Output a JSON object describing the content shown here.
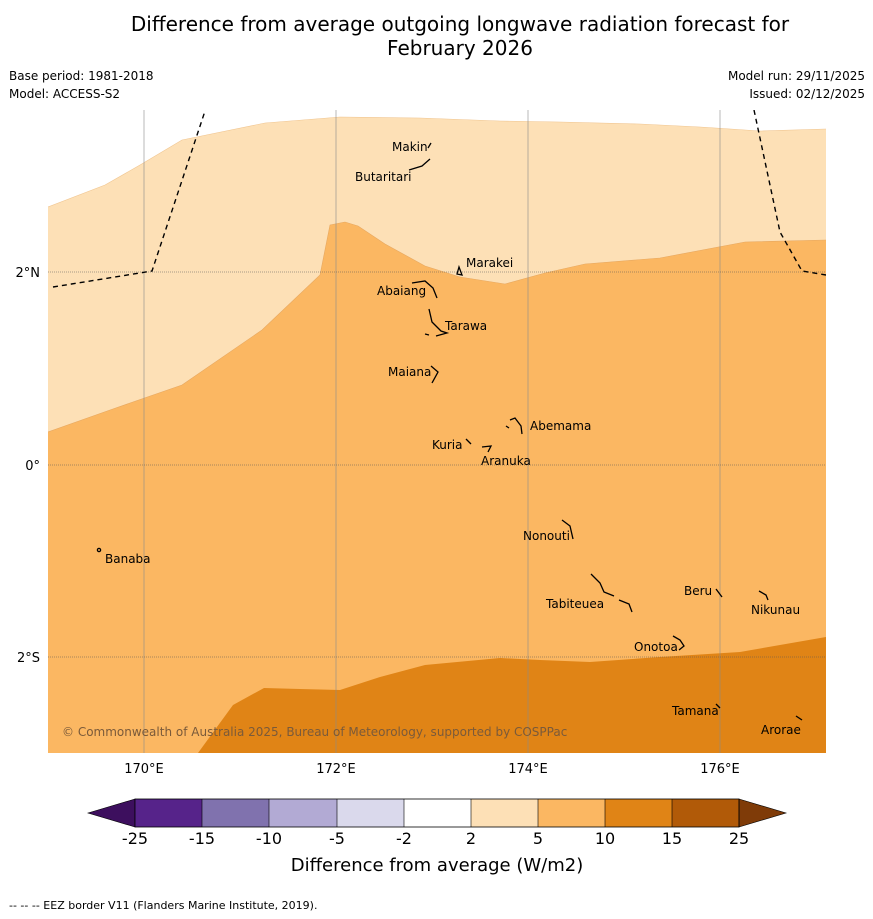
{
  "header": {
    "title_line1": "Difference from average outgoing longwave radiation forecast for",
    "title_line2": "February 2026",
    "base_period": "Base period: 1981-2018",
    "model": "Model: ACCESS-S2",
    "model_run": "Model run: 29/11/2025",
    "issued": "Issued: 02/12/2025"
  },
  "map": {
    "lon_labels": [
      "170°E",
      "172°E",
      "174°E",
      "176°E"
    ],
    "lat_labels": [
      "2°N",
      "0°",
      "2°S"
    ],
    "copyright": "© Commonwealth of Australia 2025, Bureau of Meteorology, supported by COSPPac",
    "places": [
      {
        "name": "Makin"
      },
      {
        "name": "Butaritari"
      },
      {
        "name": "Marakei"
      },
      {
        "name": "Abaiang"
      },
      {
        "name": "Tarawa"
      },
      {
        "name": "Maiana"
      },
      {
        "name": "Abemama"
      },
      {
        "name": "Kuria"
      },
      {
        "name": "Aranuka"
      },
      {
        "name": "Banaba"
      },
      {
        "name": "Nonouti"
      },
      {
        "name": "Beru"
      },
      {
        "name": "Tabiteuea"
      },
      {
        "name": "Nikunau"
      },
      {
        "name": "Onotoa"
      },
      {
        "name": "Tamana"
      },
      {
        "name": "Arorae"
      }
    ],
    "category_colors": {
      "2 to 5": "#fde0b6",
      "5 to 10": "#fbb762",
      "10 to 15": "#e08416"
    }
  },
  "colorbar": {
    "title": "Difference from average (W/m2)",
    "ticks": [
      "-25",
      "-15",
      "-10",
      "-5",
      "-2",
      "2",
      "5",
      "10",
      "15",
      "25"
    ],
    "colors": [
      "#3d0f5e",
      "#56238a",
      "#8072ae",
      "#b2aad4",
      "#dad9ec",
      "#ffffff",
      "#fde0b6",
      "#fbb762",
      "#e08416",
      "#b15a08",
      "#7f3b08"
    ]
  },
  "footer": {
    "legend": "--  --  -- EEZ border V11 (Flanders Marine Institute, 2019)."
  }
}
